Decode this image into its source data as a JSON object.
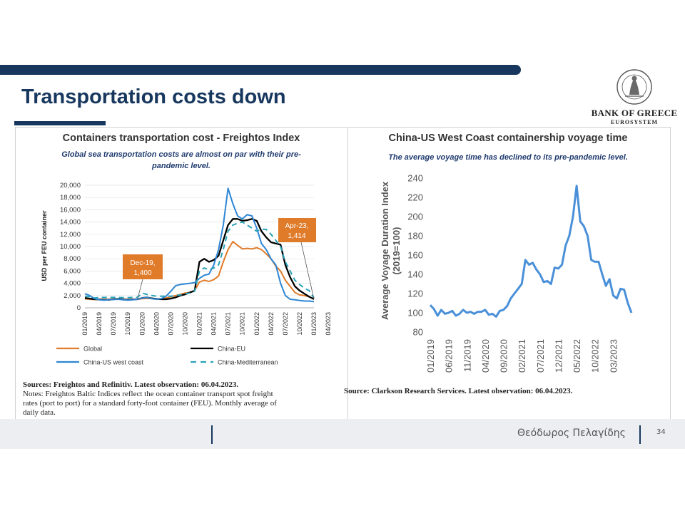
{
  "slide": {
    "title": "Transportation costs down",
    "page_number": "34",
    "author": "Θεόδωρος Πελαγίδης",
    "bank_name": "BANK OF GREECE",
    "bank_sub": "EUROSYSTEM",
    "colors": {
      "navy": "#17375e",
      "footer": "#eceef2"
    }
  },
  "left": {
    "title": "Containers transportation cost - Freightos Index",
    "subtitle_line1": "Global sea transportation costs are almost on par with their pre-",
    "subtitle_line2": "pandemic level.",
    "source_line": "Sources: Freightos and Refinitiv. Latest observation: 06.04.2023.",
    "notes_line1": "Notes: Freightos Baltic Indices reflect the ocean container transport spot freight",
    "notes_line2": "rates (port to port) for a standard forty-foot container (FEU). Monthly average of",
    "notes_line3": "daily data.",
    "callout1_line1": "Dec-19,",
    "callout1_line2": "1,400",
    "callout2_line1": "Apr-23,",
    "callout2_line2": "1,414"
  },
  "right": {
    "title": "China-US West Coast containership voyage time",
    "subtitle": "The average voyage time has declined to its pre-pandemic level.",
    "source_line": "Source: Clarkson Research Services. Latest observation: 06.04.2023."
  },
  "chart_data": [
    {
      "type": "line",
      "title": "Containers transportation cost - Freightos Index",
      "ylabel": "USD per FEU container",
      "ylim": [
        0,
        20000
      ],
      "yticks": [
        0,
        2000,
        4000,
        6000,
        8000,
        10000,
        12000,
        14000,
        16000,
        18000,
        20000
      ],
      "ytick_labels": [
        "0",
        "2,000",
        "4,000",
        "6,000",
        "8,000",
        "10,000",
        "12,000",
        "14,000",
        "16,000",
        "18,000",
        "20,000"
      ],
      "x_tick_labels": [
        "01/2019",
        "04/2019",
        "07/2019",
        "10/2019",
        "01/2020",
        "04/2020",
        "07/2020",
        "10/2020",
        "01/2021",
        "04/2021",
        "07/2021",
        "10/2021",
        "01/2022",
        "04/2022",
        "07/2022",
        "10/2022",
        "01/2023",
        "04/2023"
      ],
      "x_start": "2019-01",
      "legend_position": "bottom",
      "series": [
        {
          "name": "Global",
          "color": "#e07b2a",
          "dash": "solid",
          "values": [
            1450,
            1400,
            1350,
            1400,
            1380,
            1400,
            1420,
            1450,
            1400,
            1350,
            1400,
            1400,
            1500,
            1550,
            1500,
            1450,
            1500,
            1600,
            1800,
            2000,
            2200,
            2400,
            2500,
            2800,
            4200,
            4500,
            4300,
            4600,
            5200,
            7500,
            9500,
            10800,
            10200,
            9600,
            9700,
            9600,
            9800,
            9500,
            8800,
            8000,
            6800,
            6000,
            4500,
            3500,
            2500,
            2100,
            2000,
            1800,
            1414
          ]
        },
        {
          "name": "China-EU",
          "color": "#000000",
          "dash": "solid",
          "values": [
            1600,
            1500,
            1400,
            1350,
            1300,
            1300,
            1400,
            1450,
            1350,
            1300,
            1350,
            1400,
            1600,
            1700,
            1550,
            1450,
            1400,
            1400,
            1500,
            1700,
            2000,
            2200,
            2500,
            2800,
            7500,
            8000,
            7500,
            7800,
            8500,
            11000,
            13500,
            14500,
            14500,
            14200,
            14300,
            14500,
            14200,
            12500,
            11500,
            10700,
            10500,
            10300,
            7000,
            5000,
            3500,
            2800,
            2300,
            1800,
            1414
          ]
        },
        {
          "name": "China-US west coast",
          "color": "#2e86d4",
          "dash": "solid",
          "values": [
            2300,
            2000,
            1500,
            1300,
            1250,
            1300,
            1350,
            1400,
            1300,
            1250,
            1300,
            1400,
            1600,
            1700,
            1500,
            1400,
            1500,
            1900,
            2700,
            3600,
            3800,
            3900,
            4000,
            4100,
            4800,
            5300,
            5500,
            7000,
            9500,
            13500,
            19500,
            17000,
            15000,
            14500,
            15200,
            15000,
            13000,
            10500,
            9500,
            8000,
            7000,
            4000,
            2000,
            1400,
            1300,
            1200,
            1100,
            1100,
            1000
          ]
        },
        {
          "name": "China-Mediterranean",
          "color": "#2ba3b8",
          "dash": "dashed",
          "values": [
            1900,
            1800,
            1600,
            1700,
            1700,
            1700,
            1700,
            1700,
            1650,
            1650,
            1700,
            1700,
            2400,
            2200,
            2000,
            1900,
            1900,
            1900,
            1900,
            2000,
            2100,
            2300,
            2400,
            2700,
            6000,
            6500,
            6200,
            6500,
            7000,
            9500,
            12500,
            13500,
            13800,
            14000,
            13500,
            13000,
            12500,
            12800,
            12800,
            12000,
            11000,
            10000,
            7500,
            6000,
            4500,
            3800,
            3200,
            2800,
            1600
          ]
        }
      ],
      "annotations": [
        {
          "label": "Dec-19, 1,400",
          "x": "2019-12",
          "value": 1400
        },
        {
          "label": "Apr-23, 1,414",
          "x": "2023-04",
          "value": 1414
        }
      ]
    },
    {
      "type": "line",
      "title": "China-US West Coast containership voyage time",
      "ylabel": "Average Voyage Duration Index (2019=100)",
      "ylabel_line1": "Average Voyage Duration Index",
      "ylabel_line2": "(2019=100)",
      "ylim": [
        80,
        240
      ],
      "yticks": [
        80,
        100,
        120,
        140,
        160,
        180,
        200,
        220,
        240
      ],
      "x_tick_labels": [
        "01/2019",
        "06/2019",
        "11/2019",
        "04/2020",
        "09/2020",
        "02/2021",
        "07/2021",
        "12/2021",
        "05/2022",
        "10/2022",
        "03/2023"
      ],
      "x_start": "2019-01",
      "series": [
        {
          "name": "",
          "color": "#4a90d9",
          "values": [
            108,
            104,
            97,
            103,
            99,
            100,
            102,
            97,
            99,
            103,
            100,
            101,
            99,
            101,
            101,
            103,
            98,
            99,
            96,
            102,
            103,
            107,
            115,
            120,
            125,
            130,
            155,
            150,
            152,
            145,
            140,
            132,
            133,
            130,
            147,
            146,
            150,
            170,
            180,
            200,
            232,
            195,
            190,
            180,
            155,
            153,
            153,
            140,
            128,
            135,
            118,
            115,
            125,
            124,
            110,
            100
          ]
        }
      ]
    }
  ]
}
